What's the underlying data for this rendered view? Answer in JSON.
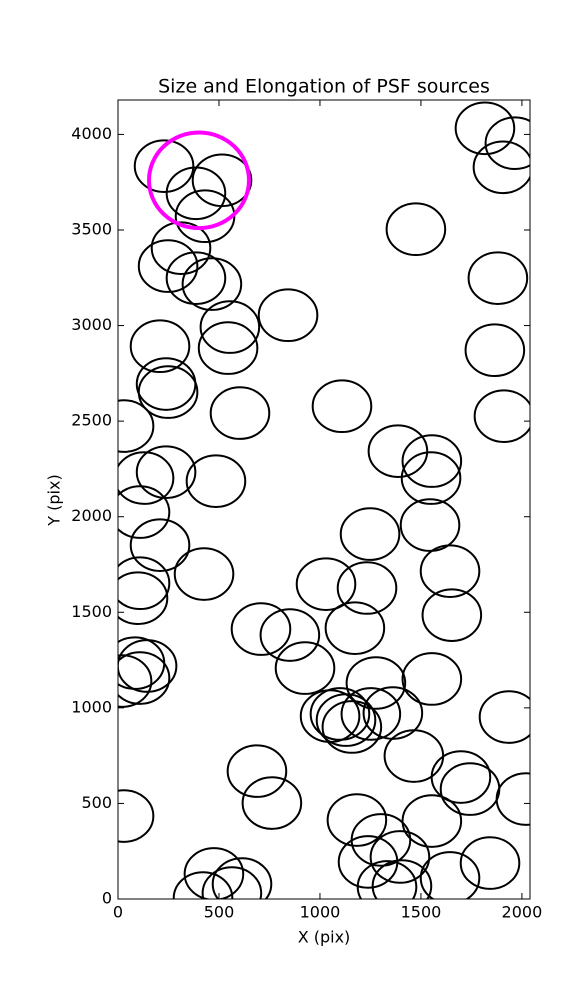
{
  "chart_data": {
    "type": "ellipse",
    "title": "Size and Elongation of PSF sources",
    "xlabel": "X (pix)",
    "ylabel": "Y (pix)",
    "xlim": [
      0,
      2040
    ],
    "ylim": [
      0,
      4180
    ],
    "xticks": [
      0,
      500,
      1000,
      1500,
      2000
    ],
    "yticks": [
      0,
      500,
      1000,
      1500,
      2000,
      2500,
      3000,
      3500,
      4000
    ],
    "color": "#000000",
    "width": 290,
    "height": 270,
    "x": [
      228,
      515,
      386,
      431,
      312,
      248,
      386,
      465,
      554,
      545,
      842,
      208,
      238,
      248,
      30,
      604,
      129,
      238,
      485,
      109,
      208,
      109,
      99,
      426,
      708,
      851,
      926,
      1030,
      1233,
      1173,
      1109,
      1475,
      1386,
      1554,
      1550,
      1545,
      1248,
      1644,
      1653,
      1554,
      1277,
      1050,
      1099,
      1129,
      1158,
      1252,
      1361,
      1465,
      1698,
      1743,
      1554,
      1183,
      1302,
      1238,
      1396,
      1332,
      1406,
      1644,
      1842,
      688,
      762,
      30,
      475,
      421,
      614,
      564,
      84,
      144,
      109,
      20,
      1817,
      1965,
      1906,
      1881,
      1866,
      1911,
      1936,
      2020
    ],
    "y": [
      3834,
      3760,
      3692,
      3572,
      3405,
      3311,
      3248,
      3217,
      2992,
      2882,
      3054,
      2892,
      2694,
      2652,
      2474,
      2542,
      2202,
      2233,
      2186,
      2024,
      1851,
      1652,
      1574,
      1700,
      1412,
      1381,
      1208,
      1647,
      1627,
      1417,
      2578,
      3504,
      2343,
      2291,
      2202,
      1956,
      1909,
      1715,
      1485,
      1151,
      1130,
      957,
      968,
      936,
      900,
      968,
      973,
      748,
      638,
      575,
      408,
      413,
      309,
      194,
      220,
      63,
      68,
      110,
      188,
      669,
      502,
      434,
      131,
      5,
      78,
      31,
      1234,
      1219,
      1156,
      1140,
      4032,
      3954,
      3828,
      3248,
      2871,
      2526,
      952,
      523
    ],
    "highlight": {
      "x": 401,
      "y": 3760,
      "width": 495,
      "height": 500,
      "color": "#ff00ff"
    }
  }
}
